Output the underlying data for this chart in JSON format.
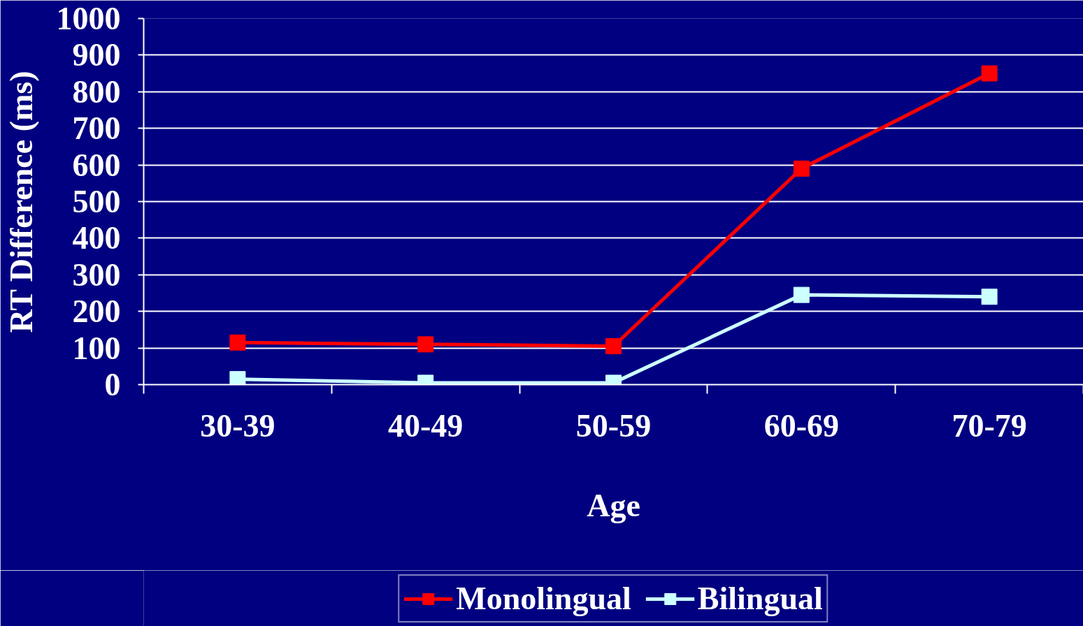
{
  "chart_data": {
    "type": "line",
    "categories": [
      "30-39",
      "40-49",
      "50-59",
      "60-69",
      "70-79"
    ],
    "series": [
      {
        "name": "Monolingual",
        "color": "#ff0000",
        "values": [
          115,
          110,
          105,
          590,
          850
        ]
      },
      {
        "name": "Bilingual",
        "color": "#ccffff",
        "values": [
          15,
          5,
          5,
          245,
          240
        ]
      }
    ],
    "xlabel": "Age",
    "ylabel": "RT Difference (ms)",
    "ylim": [
      0,
      1000
    ],
    "yticks": [
      0,
      100,
      200,
      300,
      400,
      500,
      600,
      700,
      800,
      900,
      1000
    ],
    "grid": "y",
    "legend": "bottom",
    "marker": "square",
    "line_style": "solid"
  }
}
